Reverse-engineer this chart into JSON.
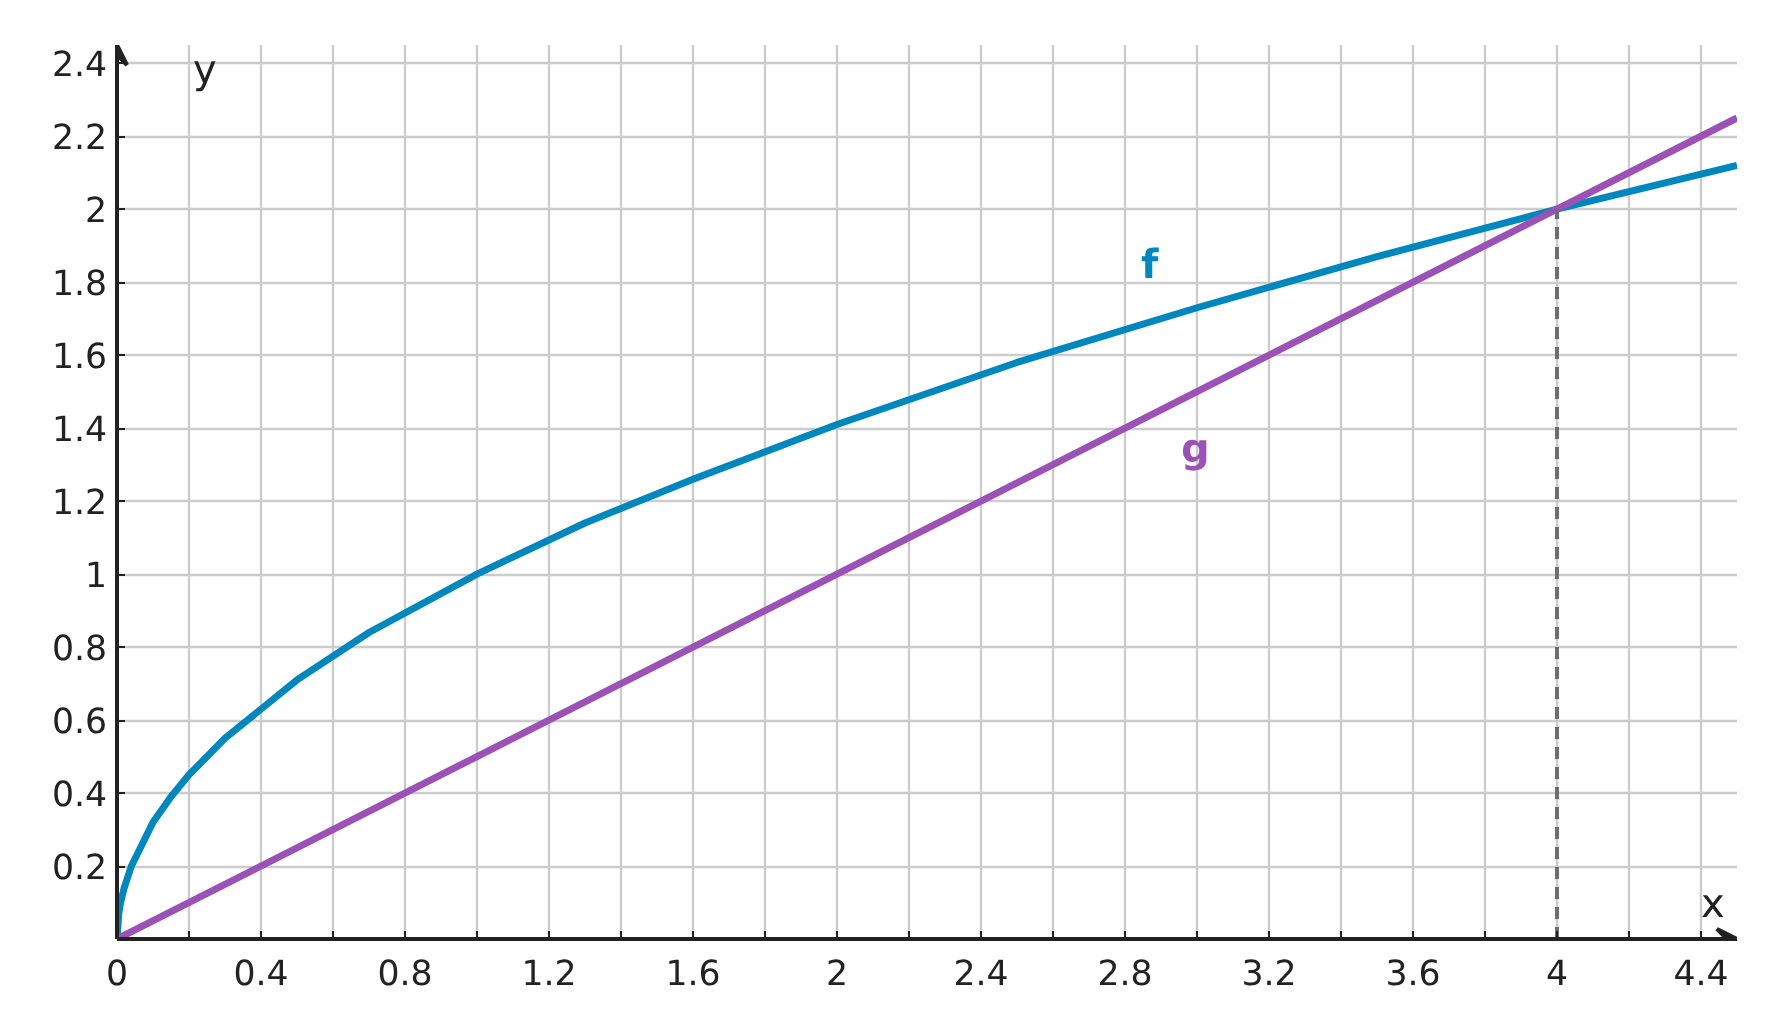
{
  "chart_data": {
    "type": "line",
    "xlabel": "x",
    "ylabel": "y",
    "xlim": [
      0,
      4.5
    ],
    "ylim": [
      0,
      2.45
    ],
    "xticks": [
      0,
      {
        "value": 0.2,
        "label": null
      },
      0.4,
      {
        "value": 0.6,
        "label": null
      },
      0.8,
      {
        "value": 1.0,
        "label": null
      },
      1.2,
      {
        "value": 1.4,
        "label": null
      },
      1.6,
      {
        "value": 1.8,
        "label": null
      },
      2,
      {
        "value": 2.2,
        "label": null
      },
      2.4,
      {
        "value": 2.6,
        "label": null
      },
      2.8,
      {
        "value": 3.0,
        "label": null
      },
      3.2,
      {
        "value": 3.4,
        "label": null
      },
      3.6,
      {
        "value": 3.8,
        "label": null
      },
      4,
      {
        "value": 4.2,
        "label": null
      },
      4.4
    ],
    "yticks": [
      0.2,
      0.4,
      0.6,
      0.8,
      1,
      1.2,
      1.4,
      1.6,
      1.8,
      2,
      2.2,
      2.4
    ],
    "grid": true,
    "series": [
      {
        "name": "f",
        "color": "#0087be",
        "x": [
          0,
          0.005,
          0.01,
          0.02,
          0.04,
          0.06,
          0.1,
          0.15,
          0.2,
          0.3,
          0.4,
          0.5,
          0.7,
          1,
          1.3,
          1.6,
          2,
          2.5,
          3,
          3.5,
          4,
          4.5
        ],
        "values": [
          0,
          0.07,
          0.1,
          0.14,
          0.2,
          0.24,
          0.32,
          0.39,
          0.45,
          0.55,
          0.63,
          0.71,
          0.84,
          1,
          1.14,
          1.26,
          1.41,
          1.58,
          1.73,
          1.87,
          2,
          2.12
        ]
      },
      {
        "name": "g",
        "color": "#9b51b6",
        "x": [
          0,
          1,
          2,
          3,
          4,
          4.5
        ],
        "values": [
          0,
          0.5,
          1,
          1.5,
          2,
          2.25
        ]
      },
      {
        "color": "#6e6e6e",
        "line_style": "dashed",
        "x": [
          4,
          4
        ],
        "values": [
          0,
          2
        ]
      }
    ]
  }
}
